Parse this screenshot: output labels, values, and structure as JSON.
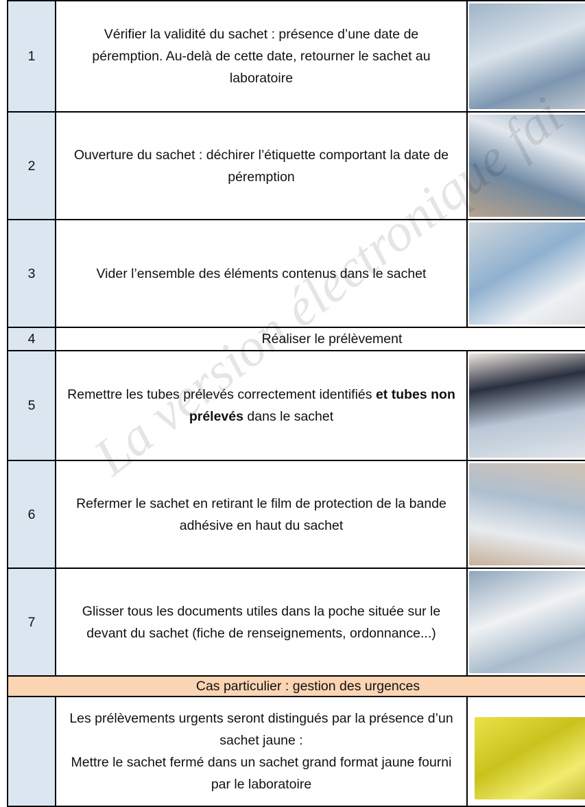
{
  "steps": [
    {
      "number": 1,
      "parts": [
        {
          "text": "Vérifier la validité du sachet : présence d’une date de péremption. Au-delà de cette date, retourner le sachet au laboratoire",
          "bold": false
        }
      ],
      "photo": true
    },
    {
      "number": 2,
      "parts": [
        {
          "text": "Ouverture du sachet : déchirer l’étiquette comportant la date de péremption",
          "bold": false
        }
      ],
      "photo": true
    },
    {
      "number": 3,
      "parts": [
        {
          "text": "Vider l’ensemble des éléments contenus dans le sachet",
          "bold": false
        }
      ],
      "photo": true
    },
    {
      "number": 4,
      "parts": [
        {
          "text": "Réaliser le prélèvement",
          "bold": false
        }
      ],
      "photo": false
    },
    {
      "number": 5,
      "parts": [
        {
          "text": "Remettre les tubes prélevés correctement identifiés",
          "bold": false
        },
        {
          "text": "et tubes non prélevés",
          "bold": true
        },
        {
          "text": "dans le sachet",
          "bold": false
        }
      ],
      "photo": true
    },
    {
      "number": 6,
      "parts": [
        {
          "text": "Refermer le sachet en retirant le film de protection de la bande adhésive en haut du sachet",
          "bold": false
        }
      ],
      "photo": true
    },
    {
      "number": 7,
      "parts": [
        {
          "text": "Glisser tous les documents utiles dans la poche située sur le devant du sachet (fiche de renseignements, ordonnance...)",
          "bold": false
        }
      ],
      "photo": true
    }
  ],
  "special_case": {
    "title": "Cas particulier : gestion des urgences",
    "lines": [
      "Les prélèvements urgents seront distingués par la présence d’un sachet jaune :",
      "Mettre le sachet fermé dans un sachet grand format jaune fourni par le laboratoire"
    ]
  },
  "watermark": "La version électronique fai"
}
